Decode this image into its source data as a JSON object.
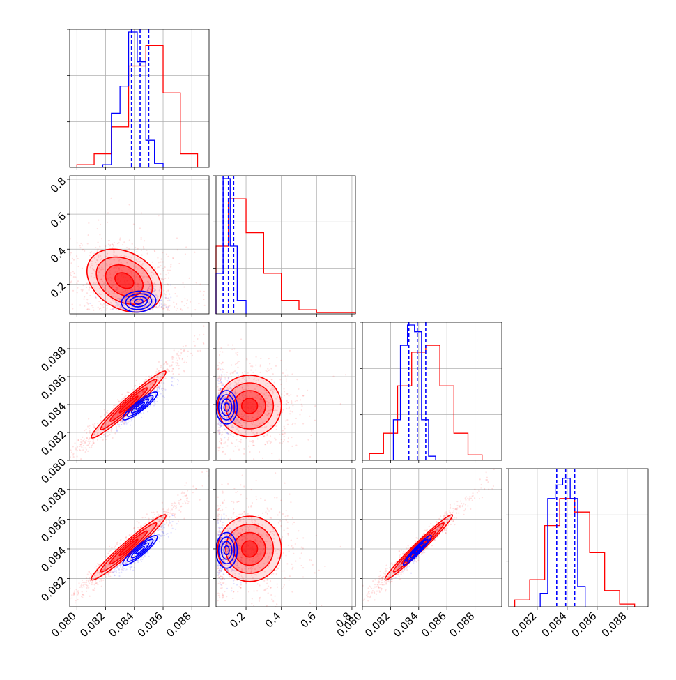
{
  "chart_data": {
    "type": "corner",
    "series": [
      {
        "name": "",
        "color": "#ff0000"
      },
      {
        "name": "",
        "color": "#0000ff"
      }
    ],
    "params": [
      {
        "range": [
          0.0795,
          0.0892
        ],
        "ticks": [
          "0.080",
          "0.082",
          "0.084",
          "0.086",
          "0.088"
        ],
        "tick_values": [
          0.08,
          0.082,
          0.084,
          0.086,
          0.088
        ]
      },
      {
        "range": [
          0.03,
          0.82
        ],
        "ticks": [
          "0.2",
          "0.4",
          "0.6",
          "0.8"
        ],
        "tick_values": [
          0.2,
          0.4,
          0.6,
          0.8
        ]
      },
      {
        "range": [
          0.08,
          0.0899
        ],
        "ticks": [
          "0.080",
          "0.082",
          "0.084",
          "0.086",
          "0.088"
        ],
        "tick_values": [
          0.08,
          0.082,
          0.084,
          0.086,
          0.088
        ]
      },
      {
        "range": [
          0.0801,
          0.0894
        ],
        "ticks": [
          "0.082",
          "0.084",
          "0.086",
          "0.088"
        ],
        "tick_values": [
          0.082,
          0.084,
          0.086,
          0.088
        ]
      }
    ],
    "ylabels_col0": [
      {
        "row": 1,
        "ticks": [
          "0.2",
          "0.4",
          "0.6",
          "0.8"
        ],
        "tick_values": [
          0.2,
          0.4,
          0.6,
          0.8
        ],
        "range": [
          0.03,
          0.82
        ]
      },
      {
        "row": 2,
        "ticks": [
          "0.080",
          "0.082",
          "0.084",
          "0.086",
          "0.088"
        ],
        "tick_values": [
          0.08,
          0.082,
          0.084,
          0.086,
          0.088
        ],
        "range": [
          0.08,
          0.0899
        ]
      },
      {
        "row": 3,
        "ticks": [
          "0.080",
          "0.082",
          "0.084",
          "0.086",
          "0.088"
        ],
        "tick_values": [
          0.08,
          0.082,
          0.084,
          0.086,
          0.088
        ],
        "range": [
          0.0801,
          0.0894
        ]
      }
    ],
    "histograms": [
      {
        "param": 0,
        "red": {
          "edges": [
            0.08,
            0.0812,
            0.0824,
            0.0836,
            0.0848,
            0.086,
            0.0872,
            0.0884
          ],
          "values": [
            0.02,
            0.1,
            0.3,
            0.75,
            0.9,
            0.55,
            0.1
          ]
        },
        "blue": {
          "edges": [
            0.0818,
            0.0824,
            0.083,
            0.0836,
            0.0842,
            0.0848,
            0.0854,
            0.086
          ],
          "values": [
            0.02,
            0.4,
            0.6,
            1.0,
            0.78,
            0.2,
            0.03
          ]
        },
        "blue_quantiles": [
          0.0838,
          0.0844,
          0.085
        ]
      },
      {
        "param": 1,
        "red": {
          "edges": [
            0.03,
            0.1,
            0.2,
            0.3,
            0.4,
            0.5,
            0.6,
            0.82
          ],
          "values": [
            0.5,
            0.85,
            0.6,
            0.3,
            0.1,
            0.03,
            0.01
          ]
        },
        "blue": {
          "edges": [
            0.03,
            0.07,
            0.11,
            0.15,
            0.2
          ],
          "values": [
            0.3,
            1.0,
            0.5,
            0.1
          ]
        },
        "blue_quantiles": [
          0.07,
          0.1,
          0.13
        ]
      },
      {
        "param": 2,
        "red": {
          "edges": [
            0.0805,
            0.0815,
            0.0825,
            0.0835,
            0.0845,
            0.0855,
            0.0865,
            0.0875,
            0.0885
          ],
          "values": [
            0.05,
            0.2,
            0.55,
            0.8,
            0.85,
            0.55,
            0.2,
            0.04
          ]
        },
        "blue": {
          "edges": [
            0.0822,
            0.0827,
            0.0832,
            0.0837,
            0.0842,
            0.0847,
            0.0852
          ],
          "values": [
            0.3,
            0.85,
            1.0,
            0.95,
            0.3,
            0.03
          ]
        },
        "blue_quantiles": [
          0.0833,
          0.0839,
          0.0845
        ]
      },
      {
        "param": 3,
        "red": {
          "edges": [
            0.0805,
            0.0815,
            0.0825,
            0.0835,
            0.0845,
            0.0855,
            0.0865,
            0.0875,
            0.0885
          ],
          "values": [
            0.05,
            0.2,
            0.6,
            0.8,
            0.7,
            0.4,
            0.12,
            0.02
          ]
        },
        "blue": {
          "edges": [
            0.0822,
            0.0827,
            0.0832,
            0.0837,
            0.0842,
            0.0847,
            0.0852
          ],
          "values": [
            0.1,
            0.8,
            0.9,
            0.95,
            0.8,
            0.15
          ]
        },
        "blue_quantiles": [
          0.0833,
          0.0839,
          0.0845
        ]
      }
    ],
    "panels_2d": [
      {
        "row": 1,
        "col": 0,
        "red_center": [
          0.0833,
          0.22
        ],
        "red_sigma": [
          0.0013,
          0.09
        ],
        "red_rho": -0.3,
        "blue_center": [
          0.0843,
          0.1
        ],
        "blue_sigma": [
          0.0006,
          0.03
        ],
        "blue_rho": 0.1
      },
      {
        "row": 2,
        "col": 0,
        "red_center": [
          0.0836,
          0.084
        ],
        "red_sigma": [
          0.0013,
          0.0012
        ],
        "red_rho": 0.97,
        "blue_center": [
          0.0844,
          0.0839
        ],
        "blue_sigma": [
          0.0006,
          0.0005
        ],
        "blue_rho": 0.9
      },
      {
        "row": 2,
        "col": 1,
        "red_center": [
          0.22,
          0.0839
        ],
        "red_sigma": [
          0.09,
          0.0011
        ],
        "red_rho": 0.0,
        "blue_center": [
          0.09,
          0.0838
        ],
        "blue_sigma": [
          0.03,
          0.0006
        ],
        "blue_rho": 0.0
      },
      {
        "row": 3,
        "col": 0,
        "red_center": [
          0.0836,
          0.0841
        ],
        "red_sigma": [
          0.0013,
          0.0011
        ],
        "red_rho": 0.97,
        "blue_center": [
          0.0844,
          0.0839
        ],
        "blue_sigma": [
          0.0006,
          0.0005
        ],
        "blue_rho": 0.9
      },
      {
        "row": 3,
        "col": 1,
        "red_center": [
          0.22,
          0.084
        ],
        "red_sigma": [
          0.09,
          0.0011
        ],
        "red_rho": 0.0,
        "blue_center": [
          0.09,
          0.0839
        ],
        "blue_sigma": [
          0.03,
          0.0006
        ],
        "blue_rho": 0.0
      },
      {
        "row": 3,
        "col": 2,
        "red_center": [
          0.084,
          0.0841
        ],
        "red_sigma": [
          0.0012,
          0.0011
        ],
        "red_rho": 0.98,
        "blue_center": [
          0.0839,
          0.0839
        ],
        "blue_sigma": [
          0.0005,
          0.0005
        ],
        "blue_rho": 0.95
      }
    ],
    "grid": true,
    "title": "",
    "legend": "none"
  }
}
